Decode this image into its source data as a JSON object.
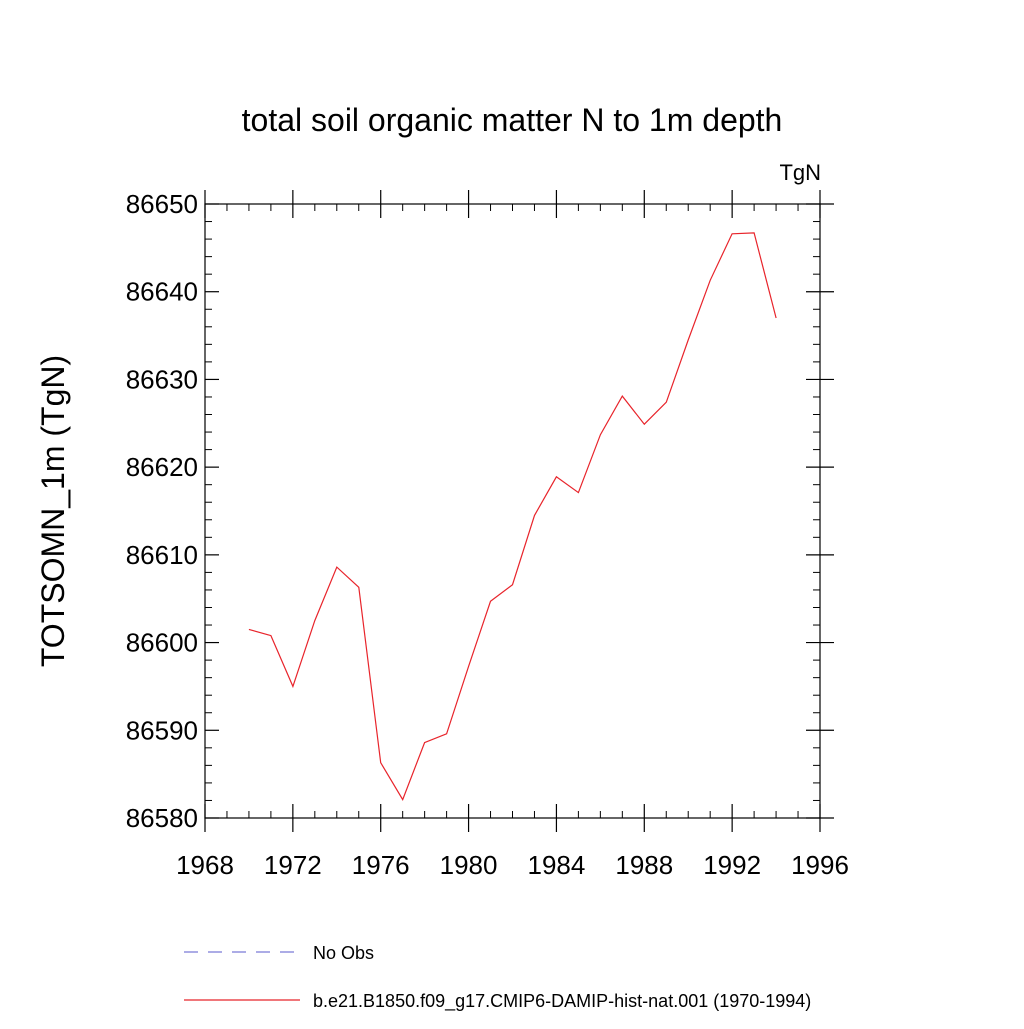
{
  "chart_data": {
    "type": "line",
    "title": "total soil organic matter N to 1m depth",
    "units_label": "TgN",
    "ylabel": "TOTSOMN_1m  (TgN)",
    "xlabel": "",
    "xlim": [
      1968,
      1996
    ],
    "ylim": [
      86580,
      86650
    ],
    "x_ticks": [
      1968,
      1972,
      1976,
      1980,
      1984,
      1988,
      1992,
      1996
    ],
    "y_ticks": [
      86580,
      86590,
      86600,
      86610,
      86620,
      86630,
      86640,
      86650
    ],
    "x_tick_labels": [
      "1968",
      "1972",
      "1976",
      "1980",
      "1984",
      "1988",
      "1992",
      "1996"
    ],
    "y_tick_labels": [
      "86580",
      "86590",
      "86600",
      "86610",
      "86620",
      "86630",
      "86640",
      "86650"
    ],
    "grid": false,
    "legend_position": "bottom",
    "series": [
      {
        "name": "No Obs",
        "style": "dashed",
        "color": "#7b7bd6",
        "x": [],
        "y": []
      },
      {
        "name": "b.e21.B1850.f09_g17.CMIP6-DAMIP-hist-nat.001 (1970-1994)",
        "style": "solid",
        "color": "#e8242b",
        "x": [
          1970,
          1971,
          1972,
          1973,
          1974,
          1975,
          1976,
          1977,
          1978,
          1979,
          1980,
          1981,
          1982,
          1983,
          1984,
          1985,
          1986,
          1987,
          1988,
          1989,
          1990,
          1991,
          1992,
          1993,
          1994
        ],
        "y": [
          86601.5,
          86600.8,
          86595.0,
          86602.5,
          86608.6,
          86606.3,
          86586.3,
          86582.1,
          86588.6,
          86589.6,
          86597.3,
          86604.7,
          86606.6,
          86614.5,
          86618.9,
          86617.1,
          86623.7,
          86628.1,
          86624.9,
          86627.4,
          86634.5,
          86641.3,
          86646.6,
          86646.7,
          86637.0
        ]
      }
    ]
  }
}
